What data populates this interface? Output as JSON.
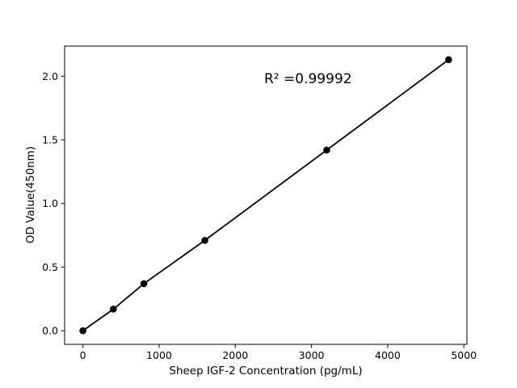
{
  "chart_data": {
    "type": "scatter",
    "title": "",
    "xlabel": "Sheep IGF-2 Concentration (pg/mL)",
    "ylabel": "OD Value(450nm)",
    "annotation": "R² =0.99992",
    "x": [
      0,
      400,
      800,
      1600,
      3200,
      4800
    ],
    "y": [
      0.0,
      0.17,
      0.37,
      0.71,
      1.42,
      2.13
    ],
    "xticks": [
      "0",
      "1000",
      "2000",
      "3000",
      "4000",
      "5000"
    ],
    "yticks": [
      "0.0",
      "0.5",
      "1.0",
      "1.5",
      "2.0"
    ],
    "xlim": [
      -240,
      5040
    ],
    "ylim": [
      -0.107,
      2.237
    ],
    "grid": false,
    "legend": "none",
    "line_color": "#000000",
    "marker_color": "#000000",
    "axis_color": "#000000",
    "background": "#ffffff"
  }
}
